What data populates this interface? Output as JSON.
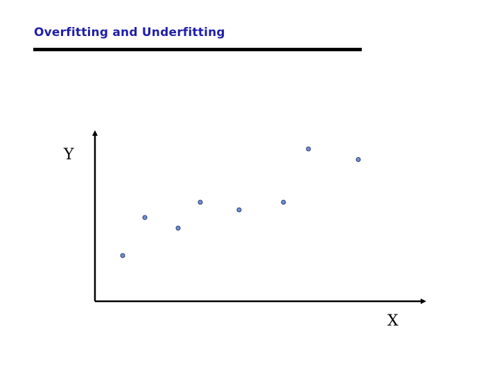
{
  "slide": {
    "title": "Overfitting and Underfitting",
    "title_color": "#1f1fa8"
  },
  "chart_data": {
    "type": "scatter",
    "title": "",
    "xlabel": "X",
    "ylabel": "Y",
    "xlim": [
      0,
      11
    ],
    "ylim": [
      0,
      11
    ],
    "grid": false,
    "point_color": "#6f8fd8",
    "series": [
      {
        "x": [
          1.0,
          1.8,
          3.0,
          3.8,
          5.2,
          6.8,
          7.7,
          9.5
        ],
        "y": [
          3.0,
          5.5,
          4.8,
          6.5,
          6.0,
          6.5,
          10.0,
          9.3
        ]
      }
    ]
  }
}
